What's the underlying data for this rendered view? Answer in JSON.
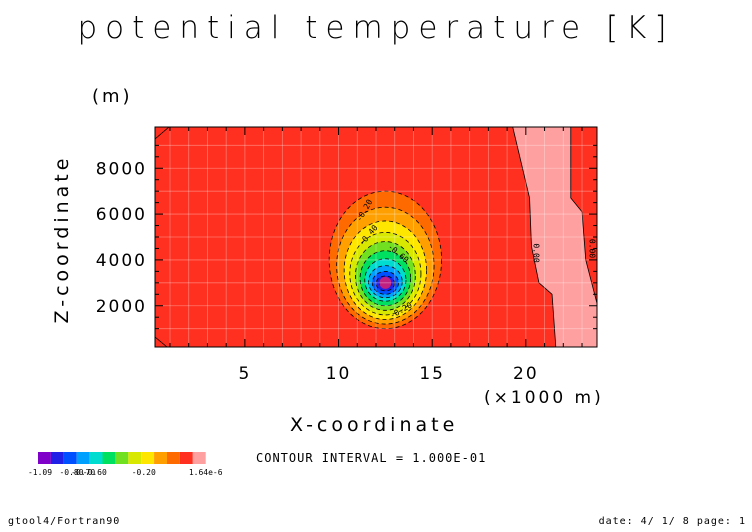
{
  "chart_data": {
    "type": "contour",
    "title": "potential temperature [K]",
    "xlabel": "X-coordinate",
    "ylabel": "Z-coordinate",
    "x_unit": "(×1000 m)",
    "y_unit": "(m)",
    "xlim": [
      0.2,
      23.8
    ],
    "ylim": [
      200,
      9800
    ],
    "x_ticks": [
      5,
      10,
      15,
      20
    ],
    "y_ticks": [
      2000,
      4000,
      6000,
      8000
    ],
    "anomaly_center": {
      "x": 12.5,
      "z": 3000,
      "value": -1.09
    },
    "contour_levels": [
      -1.0,
      -0.9,
      -0.8,
      -0.7,
      -0.6,
      -0.5,
      -0.4,
      -0.3,
      -0.2,
      -0.1,
      0.0
    ],
    "contour_labels": [
      "-0.20",
      "-0.40",
      "-0.60",
      "-0.20",
      "0.00",
      "0.00"
    ],
    "colorbar_labels": [
      "-1.09",
      "-0.80",
      "-0.70",
      "-0.60",
      "-0.20",
      "1.64e-6"
    ],
    "colorbar_colors": [
      "#7f00c8",
      "#2020e6",
      "#0050ff",
      "#00a0ff",
      "#00ddd0",
      "#00e060",
      "#70e020",
      "#d8e800",
      "#ffe600",
      "#ffa000",
      "#ff6a00",
      "#ff3020",
      "#ffa0a0"
    ],
    "contour_interval_text": "CONTOUR INTERVAL = 1.000E-01"
  },
  "footer": {
    "left": "gtool4/Fortran90",
    "right": "date: 4/ 1/ 8 page: 1"
  }
}
